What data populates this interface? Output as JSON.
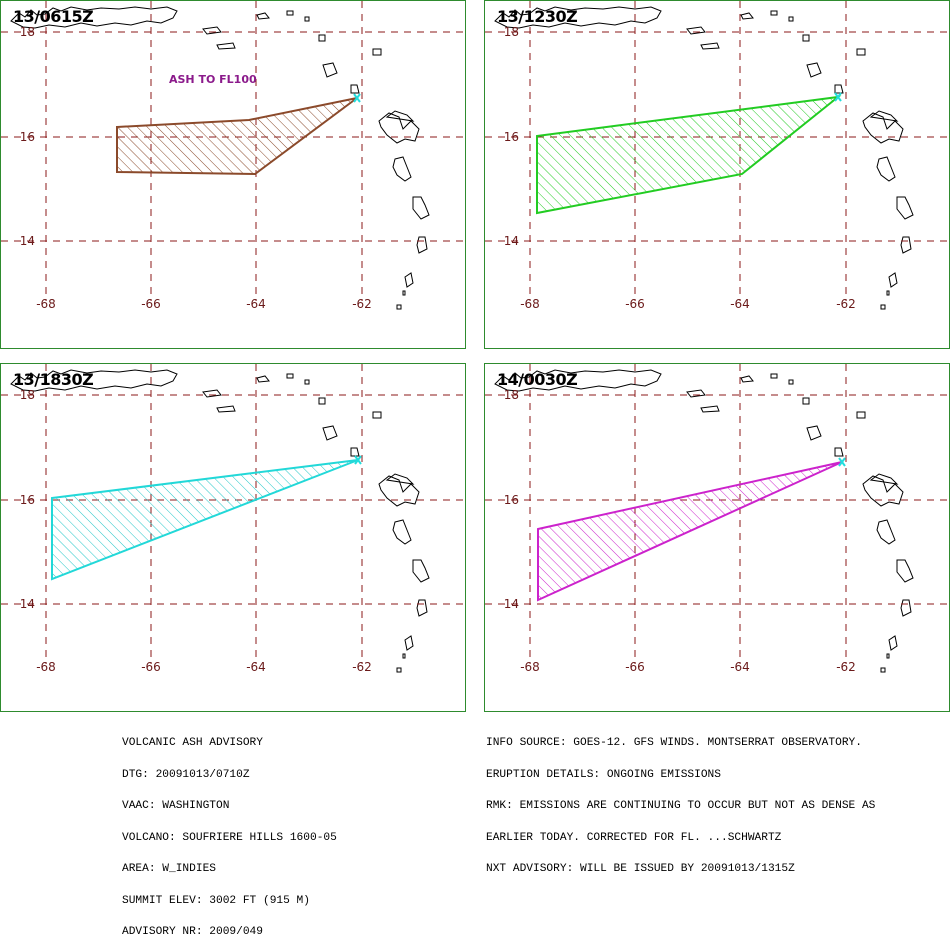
{
  "panels": [
    {
      "time": "13/0615Z",
      "color": "#8b4a2b",
      "fill_color": "#8b4a2b",
      "annotation": "ASH TO FL100"
    },
    {
      "time": "13/1230Z",
      "color": "#22cc22",
      "fill_color": "#22cc22",
      "annotation": ""
    },
    {
      "time": "13/1830Z",
      "color": "#22d8d8",
      "fill_color": "#22c8c8",
      "annotation": ""
    },
    {
      "time": "14/0030Z",
      "color": "#cc22cc",
      "fill_color": "#cc22cc",
      "annotation": ""
    }
  ],
  "axes": {
    "lon_ticks": [
      "-68",
      "-66",
      "-64",
      "-62"
    ],
    "lat_ticks": [
      "16",
      "14"
    ],
    "top_partial_lat": "18"
  },
  "colors": {
    "grid": "#8b1a1a",
    "border": "#2e8b2e",
    "coast": "#000000",
    "volcano": "#22dddd"
  },
  "advisory_left": [
    "VOLCANIC ASH ADVISORY",
    "DTG: 20091013/0710Z",
    "VAAC: WASHINGTON",
    "VOLCANO: SOUFRIERE HILLS 1600-05",
    "AREA: W_INDIES",
    "SUMMIT ELEV: 3002 FT (915 M)",
    "ADVISORY NR: 2009/049"
  ],
  "advisory_right": [
    "INFO SOURCE: GOES-12. GFS WINDS. MONTSERRAT OBSERVATORY.",
    "ERUPTION DETAILS: ONGOING EMISSIONS",
    "RMK: EMISSIONS ARE CONTINUING TO OCCUR BUT NOT AS DENSE AS",
    "EARLIER TODAY. CORRECTED FOR FL. ...SCHWARTZ",
    "NXT ADVISORY: WILL BE ISSUED BY 20091013/1315Z"
  ]
}
